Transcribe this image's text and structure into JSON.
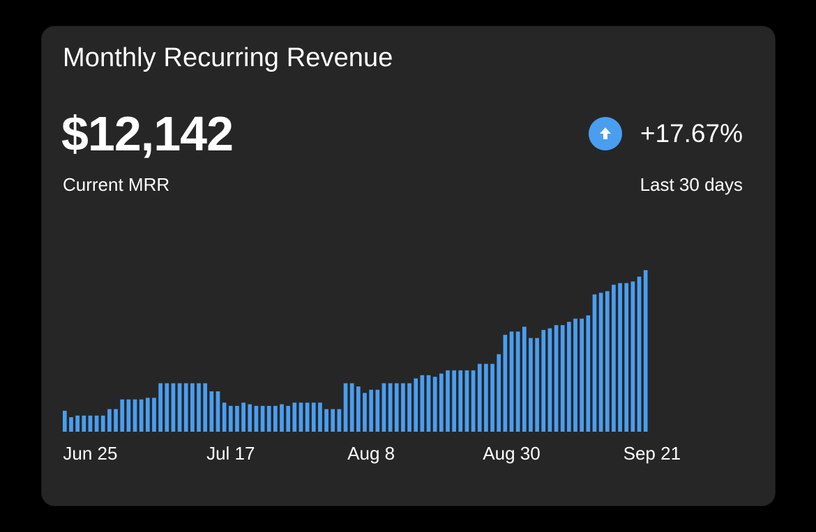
{
  "card": {
    "title": "Monthly Recurring Revenue",
    "mrr_value": "$12,142",
    "mrr_label": "Current MRR",
    "change_value": "+17.67%",
    "change_icon": "arrow-up-circle-icon",
    "period_label": "Last 30 days"
  },
  "colors": {
    "background": "#000000",
    "card": "#262626",
    "bar": "#4a9ef0",
    "accent": "#4a9ef0",
    "text": "#ffffff"
  },
  "chart_data": {
    "type": "bar",
    "title": "Monthly Recurring Revenue",
    "xlabel": "",
    "ylabel": "",
    "grid": false,
    "x_tick_labels": [
      "Jun 25",
      "Jul 17",
      "Aug 8",
      "Aug 30",
      "Sep 21"
    ],
    "x_tick_indices": [
      4,
      26,
      48,
      70,
      92
    ],
    "ylim": [
      0,
      100
    ],
    "values": [
      13,
      9,
      10,
      10,
      10,
      10,
      10,
      14,
      14,
      20,
      20,
      20,
      20,
      21,
      21,
      30,
      30,
      30,
      30,
      30,
      30,
      30,
      30,
      25,
      25,
      18,
      16,
      16,
      18,
      17,
      16,
      16,
      16,
      16,
      17,
      16,
      18,
      18,
      18,
      18,
      18,
      14,
      14,
      14,
      30,
      30,
      28,
      24,
      26,
      26,
      30,
      30,
      30,
      30,
      30,
      33,
      35,
      35,
      34,
      36,
      38,
      38,
      38,
      38,
      38,
      42,
      42,
      42,
      48,
      60,
      62,
      62,
      65,
      58,
      58,
      63,
      64,
      66,
      66,
      68,
      70,
      70,
      72,
      85,
      86,
      87,
      91,
      92,
      92,
      93,
      96,
      100
    ]
  }
}
